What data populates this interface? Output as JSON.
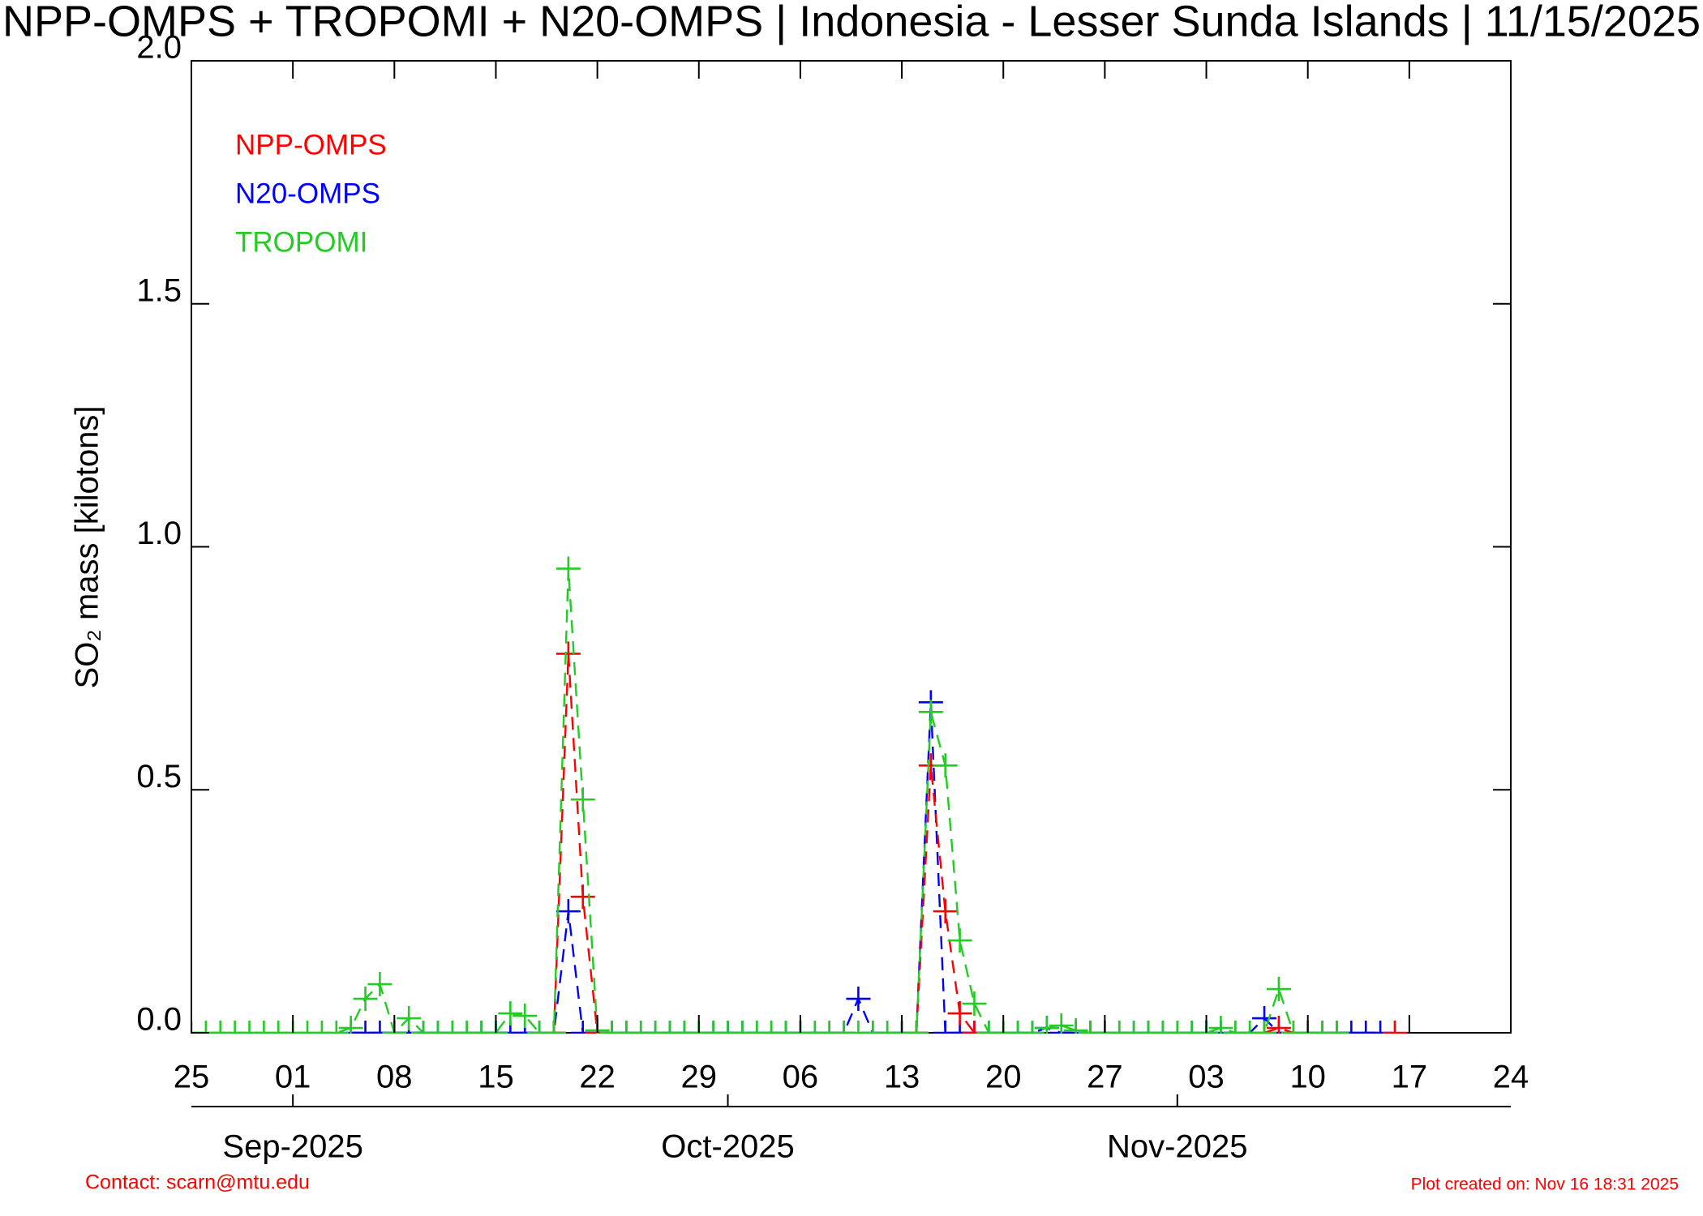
{
  "chart_data": {
    "type": "line",
    "title": "NPP-OMPS + TROPOMI + N20-OMPS | Indonesia - Lesser Sunda Islands | 11/15/2025",
    "y_label": "SO₂ mass [kilotons]",
    "contact": "Contact: scarn@mtu.edu",
    "created": "Plot created on: Nov 16 18:31 2025",
    "xlim": [
      "2025-08-25",
      "2025-11-24"
    ],
    "xticks": [
      {
        "value": "2025-08-25",
        "label": "25"
      },
      {
        "value": "2025-09-01",
        "label": "01"
      },
      {
        "value": "2025-09-08",
        "label": "08"
      },
      {
        "value": "2025-09-15",
        "label": "15"
      },
      {
        "value": "2025-09-22",
        "label": "22"
      },
      {
        "value": "2025-09-29",
        "label": "29"
      },
      {
        "value": "2025-10-06",
        "label": "06"
      },
      {
        "value": "2025-10-13",
        "label": "13"
      },
      {
        "value": "2025-10-20",
        "label": "20"
      },
      {
        "value": "2025-10-27",
        "label": "27"
      },
      {
        "value": "2025-11-03",
        "label": "03"
      },
      {
        "value": "2025-11-10",
        "label": "10"
      },
      {
        "value": "2025-11-17",
        "label": "17"
      },
      {
        "value": "2025-11-24",
        "label": "24"
      }
    ],
    "month_ticks": [
      {
        "value": "2025-09-01",
        "label": "Sep-2025"
      },
      {
        "value": "2025-10-01",
        "label": "Oct-2025"
      },
      {
        "value": "2025-11-01",
        "label": "Nov-2025"
      }
    ],
    "ylim": [
      0,
      2
    ],
    "yticks": [
      {
        "value": 0,
        "label": "0.0"
      },
      {
        "value": 0.5,
        "label": "0.5"
      },
      {
        "value": 1,
        "label": "1.0"
      },
      {
        "value": 1.5,
        "label": "1.5"
      },
      {
        "value": 2,
        "label": "2.0"
      }
    ],
    "legend": "upper left",
    "x": [
      "2025-08-25",
      "2025-08-26",
      "2025-08-27",
      "2025-08-28",
      "2025-08-29",
      "2025-08-30",
      "2025-08-31",
      "2025-09-01",
      "2025-09-02",
      "2025-09-03",
      "2025-09-04",
      "2025-09-05",
      "2025-09-06",
      "2025-09-07",
      "2025-09-08",
      "2025-09-09",
      "2025-09-10",
      "2025-09-11",
      "2025-09-12",
      "2025-09-13",
      "2025-09-14",
      "2025-09-15",
      "2025-09-16",
      "2025-09-17",
      "2025-09-18",
      "2025-09-19",
      "2025-09-20",
      "2025-09-21",
      "2025-09-22",
      "2025-09-23",
      "2025-09-24",
      "2025-09-25",
      "2025-09-26",
      "2025-09-27",
      "2025-09-28",
      "2025-09-29",
      "2025-09-30",
      "2025-10-01",
      "2025-10-02",
      "2025-10-03",
      "2025-10-04",
      "2025-10-05",
      "2025-10-06",
      "2025-10-07",
      "2025-10-08",
      "2025-10-09",
      "2025-10-10",
      "2025-10-11",
      "2025-10-12",
      "2025-10-13",
      "2025-10-14",
      "2025-10-15",
      "2025-10-16",
      "2025-10-17",
      "2025-10-18",
      "2025-10-19",
      "2025-10-20",
      "2025-10-21",
      "2025-10-22",
      "2025-10-23",
      "2025-10-24",
      "2025-10-25",
      "2025-10-26",
      "2025-10-27",
      "2025-10-28",
      "2025-10-29",
      "2025-10-30",
      "2025-10-31",
      "2025-11-01",
      "2025-11-02",
      "2025-11-03",
      "2025-11-04",
      "2025-11-05",
      "2025-11-06",
      "2025-11-07",
      "2025-11-08",
      "2025-11-09",
      "2025-11-10",
      "2025-11-11",
      "2025-11-12",
      "2025-11-13",
      "2025-11-14",
      "2025-11-15",
      "2025-11-16"
    ],
    "series": [
      {
        "name": "NPP-OMPS",
        "color": "#ff0000",
        "values": [
          null,
          null,
          null,
          null,
          null,
          null,
          null,
          null,
          null,
          null,
          null,
          null,
          null,
          null,
          null,
          null,
          null,
          null,
          null,
          null,
          null,
          null,
          null,
          null,
          null,
          0,
          0.78,
          0.28,
          0,
          null,
          null,
          null,
          null,
          null,
          null,
          null,
          null,
          null,
          null,
          null,
          null,
          null,
          null,
          null,
          null,
          null,
          null,
          null,
          null,
          null,
          0,
          0.55,
          0.25,
          0.04,
          0,
          null,
          null,
          null,
          null,
          null,
          null,
          null,
          null,
          null,
          null,
          null,
          null,
          null,
          null,
          null,
          null,
          null,
          null,
          null,
          0,
          0.01,
          0,
          null,
          null,
          null,
          null,
          null,
          null,
          0
        ]
      },
      {
        "name": "N20-OMPS",
        "color": "#0000ff",
        "values": [
          null,
          null,
          null,
          null,
          null,
          null,
          null,
          null,
          null,
          null,
          null,
          0,
          0,
          0,
          0,
          0,
          0,
          0,
          0,
          0,
          0,
          0,
          0,
          0,
          0,
          0,
          0.25,
          0,
          0,
          0,
          0,
          0,
          0,
          0,
          0,
          0,
          0,
          0,
          0,
          0,
          0,
          0,
          0,
          0,
          0,
          0,
          0.07,
          0,
          0,
          0,
          0,
          0.68,
          0,
          0,
          0,
          0,
          0,
          0,
          0,
          0.01,
          0,
          0,
          0,
          0,
          0,
          0,
          0,
          0,
          0,
          0,
          0,
          0,
          0,
          0,
          0.03,
          0,
          0,
          0,
          0,
          0,
          0,
          0,
          0,
          null
        ]
      },
      {
        "name": "TROPOMI",
        "color": "#22cc22",
        "values": [
          0,
          0,
          0,
          0,
          0,
          0,
          0,
          0,
          0,
          0,
          0,
          0.01,
          0.07,
          0.1,
          0,
          0.03,
          0,
          0,
          0,
          0,
          0,
          0,
          0.04,
          0.035,
          0,
          0,
          0.955,
          0.48,
          0.005,
          0,
          0,
          0,
          0,
          0,
          0,
          0,
          0,
          0,
          0,
          0,
          0,
          0,
          0,
          0,
          0,
          0,
          0,
          0,
          0,
          0,
          0,
          0.66,
          0.55,
          0.19,
          0.06,
          0,
          0,
          0,
          0,
          0.01,
          0.015,
          0.005,
          0,
          0,
          0,
          0,
          0,
          0,
          0,
          0,
          0,
          0.01,
          0,
          0,
          0,
          0.09,
          0,
          0,
          0,
          0,
          null,
          null,
          null,
          null
        ]
      }
    ]
  }
}
